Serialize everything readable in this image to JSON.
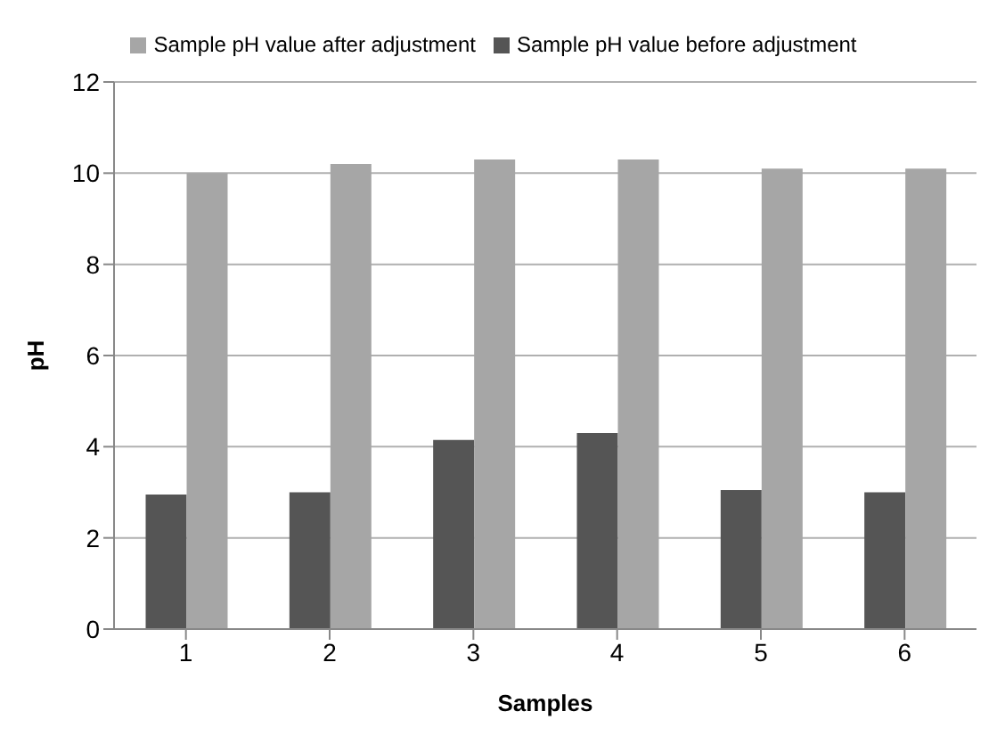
{
  "chart_data": {
    "type": "bar",
    "xlabel": "Samples",
    "ylabel": "pH",
    "categories": [
      "1",
      "2",
      "3",
      "4",
      "5",
      "6"
    ],
    "series": [
      {
        "name": "Sample pH value before adjustment",
        "color": "#555555",
        "values": [
          2.95,
          3.0,
          4.15,
          4.3,
          3.05,
          3.0
        ]
      },
      {
        "name": "Sample pH value after adjustment",
        "color": "#a6a6a6",
        "values": [
          10.0,
          10.2,
          10.3,
          10.3,
          10.1,
          10.1
        ]
      }
    ],
    "ylim": [
      0,
      12
    ],
    "yticks": [
      0,
      2,
      4,
      6,
      8,
      10,
      12
    ],
    "grid": "y",
    "legend": "top"
  }
}
